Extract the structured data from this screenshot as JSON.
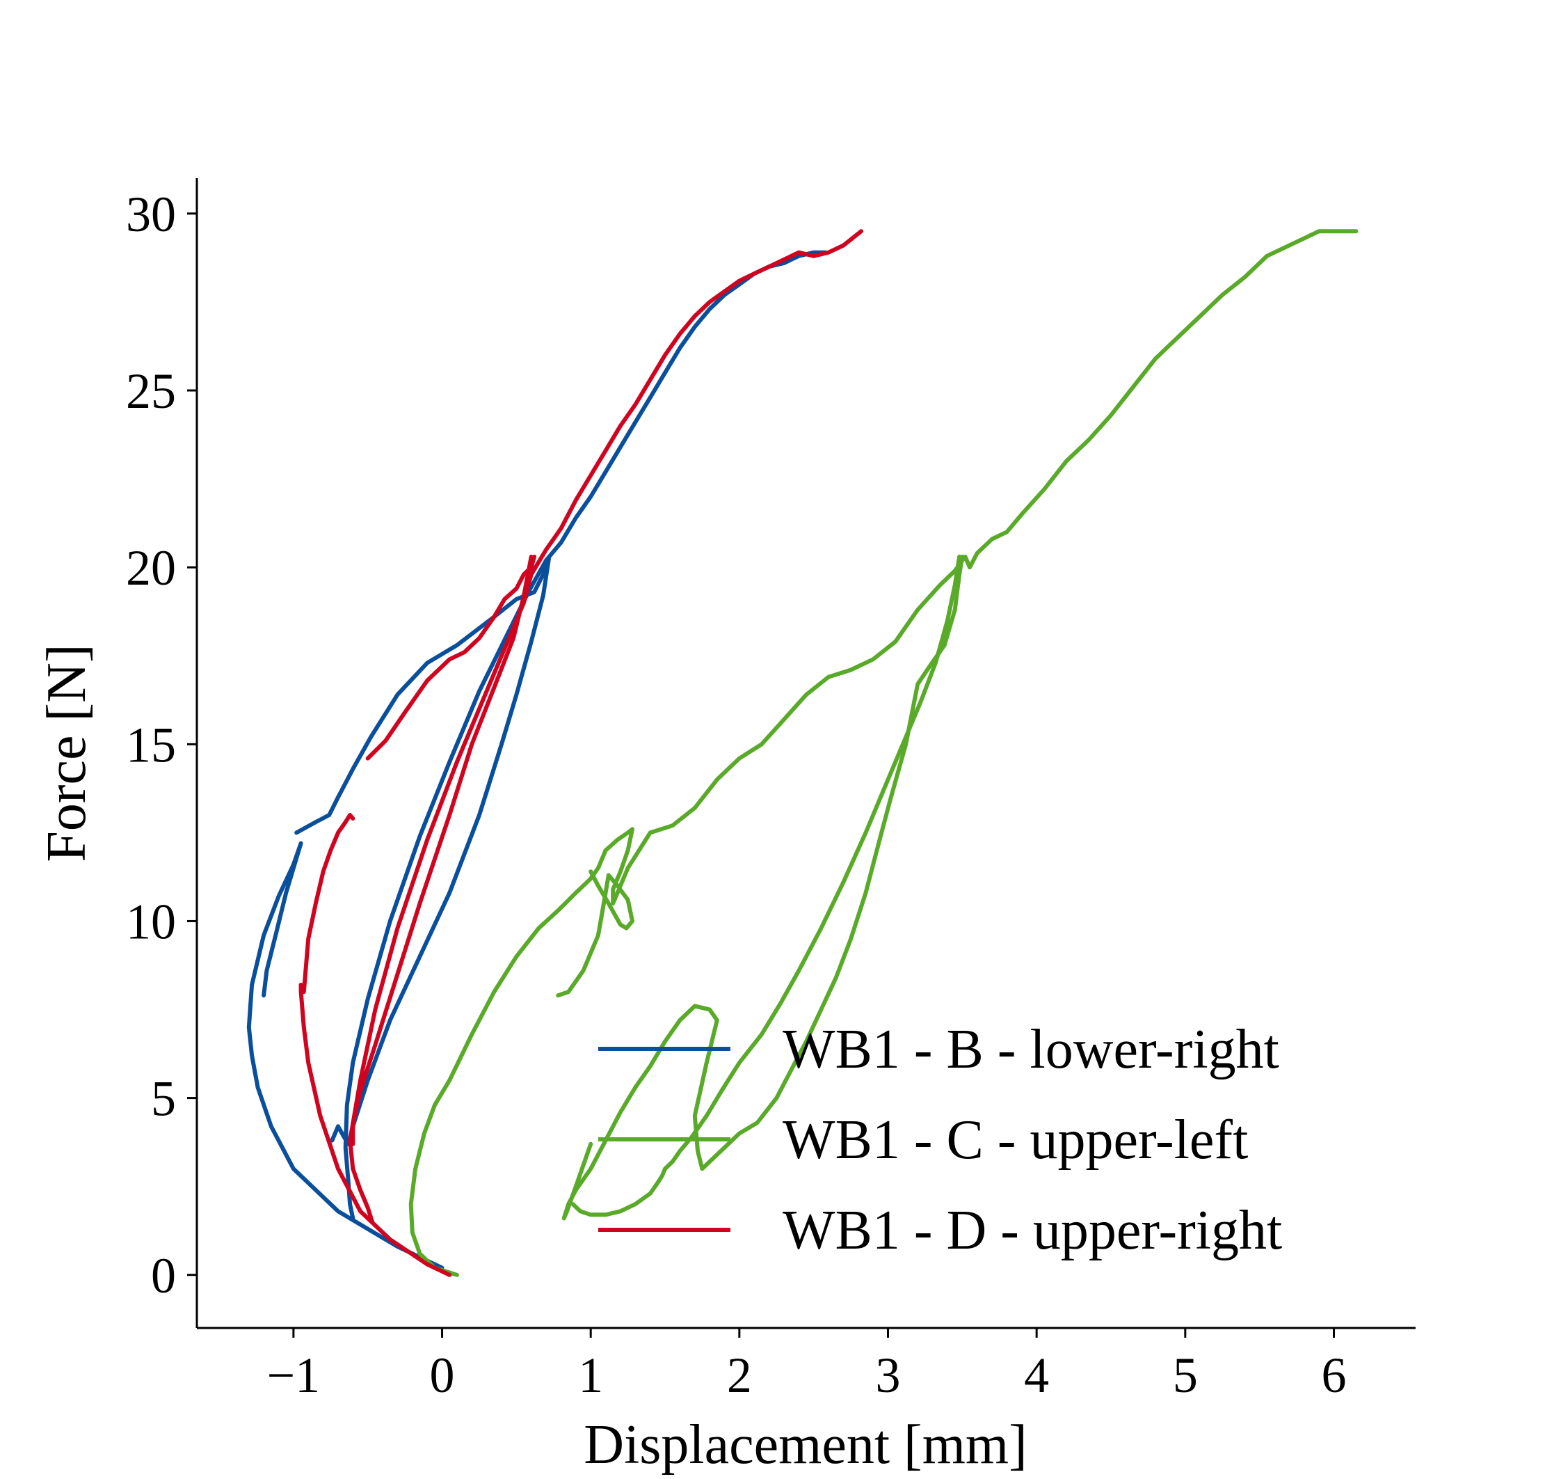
{
  "chart_data": {
    "type": "line",
    "title": "",
    "xlabel": "Displacement [mm]",
    "ylabel": "Force [N]",
    "xlim": [
      -1.65,
      6.55
    ],
    "ylim": [
      -1.5,
      31
    ],
    "xticks": [
      -1,
      0,
      1,
      2,
      3,
      4,
      5,
      6
    ],
    "xtick_labels": [
      "−1",
      "0",
      "1",
      "2",
      "3",
      "4",
      "5",
      "6"
    ],
    "yticks": [
      0,
      5,
      10,
      15,
      20,
      25,
      30
    ],
    "ytick_labels": [
      "0",
      "5",
      "10",
      "15",
      "20",
      "25",
      "30"
    ],
    "grid": false,
    "legend_position": "lower-right",
    "series": [
      {
        "name": "WB1 - B - lower-right",
        "color": "#0a4f9c",
        "x": [
          0.0,
          -0.3,
          -0.7,
          -1.0,
          -1.15,
          -1.24,
          -1.28,
          -1.3,
          -1.28,
          -1.2,
          -1.1,
          -1.0,
          -0.95,
          -1.05,
          -1.12,
          -1.18,
          -1.2,
          null,
          -0.98,
          -0.85,
          -0.76,
          -0.7,
          -0.6,
          -0.48,
          -0.3,
          -0.1,
          0.1,
          0.35,
          0.5,
          0.62,
          0.68,
          0.72,
          null,
          0.72,
          0.68,
          0.6,
          0.5,
          0.4,
          0.25,
          0.05,
          -0.15,
          -0.35,
          -0.5,
          -0.6,
          -0.63,
          -0.66,
          -0.7,
          -0.72,
          -0.74,
          null,
          -0.6,
          -0.62,
          -0.63,
          -0.65,
          -0.64,
          -0.6,
          -0.5,
          -0.35,
          -0.15,
          0.05,
          0.25,
          0.45,
          0.58,
          0.66,
          0.7,
          null,
          0.7,
          0.8,
          0.9,
          1.0,
          1.1,
          1.2,
          1.3,
          1.4,
          1.5,
          1.6,
          1.7,
          1.8,
          1.9,
          2.0,
          2.1,
          2.2,
          2.3,
          2.4,
          2.5,
          2.58
        ],
        "y": [
          0.2,
          0.8,
          1.8,
          3.0,
          4.2,
          5.3,
          6.2,
          7.0,
          8.2,
          9.6,
          10.7,
          11.6,
          12.2,
          10.8,
          9.6,
          8.6,
          7.9,
          null,
          12.5,
          12.8,
          13.0,
          13.5,
          14.3,
          15.2,
          16.4,
          17.3,
          17.8,
          18.6,
          19.1,
          19.3,
          19.8,
          20.3,
          null,
          20.3,
          19.2,
          17.9,
          16.4,
          15.0,
          13.0,
          10.8,
          9.0,
          7.2,
          5.5,
          4.2,
          3.7,
          3.9,
          4.2,
          4.0,
          3.8,
          null,
          1.6,
          2.0,
          2.6,
          3.6,
          4.8,
          6.0,
          7.8,
          10.0,
          12.4,
          14.5,
          16.5,
          18.2,
          19.3,
          19.9,
          20.2,
          null,
          20.2,
          20.7,
          21.4,
          22.0,
          22.7,
          23.4,
          24.1,
          24.8,
          25.5,
          26.2,
          26.8,
          27.3,
          27.7,
          28.0,
          28.3,
          28.5,
          28.6,
          28.8,
          28.9,
          28.9
        ]
      },
      {
        "name": "WB1 - C - upper-left",
        "color": "#5aaa29",
        "x": [
          0.1,
          -0.05,
          -0.15,
          -0.2,
          -0.21,
          -0.18,
          -0.12,
          -0.05,
          0.05,
          0.2,
          0.35,
          0.5,
          0.65,
          0.78,
          0.9,
          1.0,
          1.05,
          1.1,
          1.18,
          1.25,
          1.28,
          1.25,
          1.2,
          1.15,
          1.15,
          1.25,
          1.4,
          1.55,
          1.7,
          1.85,
          2.0,
          2.15,
          2.3,
          2.45,
          2.6,
          2.75,
          2.9,
          3.05,
          3.2,
          3.35,
          3.45,
          3.5,
          3.52,
          3.55,
          3.6,
          3.7,
          3.8,
          3.9,
          4.05,
          4.2,
          4.35,
          4.5,
          4.65,
          4.8,
          4.95,
          5.1,
          5.25,
          5.4,
          5.55,
          5.7,
          5.8,
          5.9,
          6.15,
          null,
          3.5,
          3.48,
          3.45,
          3.38,
          3.28,
          3.2,
          3.12,
          3.02,
          2.95,
          2.85,
          2.75,
          2.65,
          2.55,
          2.45,
          2.35,
          2.25,
          2.12,
          2.0,
          1.9,
          1.8,
          1.75,
          1.72,
          1.7,
          1.78,
          1.85,
          1.8,
          1.7,
          1.6,
          1.5,
          1.4,
          1.3,
          1.2,
          1.1,
          1.0,
          0.9,
          0.85,
          0.82,
          0.84,
          0.9,
          1.0,
          null,
          3.48,
          3.45,
          3.4,
          3.32,
          3.22,
          3.1,
          2.98,
          2.85,
          2.7,
          2.55,
          2.4,
          2.28,
          2.15,
          2.0,
          1.88,
          1.78,
          1.68,
          1.6,
          1.55,
          1.5,
          1.48,
          1.45,
          1.4,
          1.3,
          1.2,
          1.1,
          1.0,
          0.93,
          0.88,
          null,
          0.78,
          0.85,
          0.95,
          1.05,
          1.1,
          1.12,
          1.18,
          1.25,
          1.28,
          1.24,
          1.2,
          1.12,
          1.05,
          1.0
        ],
        "y": [
          0.0,
          0.2,
          0.6,
          1.2,
          2.0,
          3.0,
          4.0,
          4.8,
          5.5,
          6.8,
          8.0,
          9.0,
          9.8,
          10.3,
          10.8,
          11.2,
          11.5,
          12.0,
          12.3,
          12.5,
          12.6,
          12.0,
          11.4,
          10.9,
          10.5,
          11.5,
          12.5,
          12.7,
          13.2,
          14.0,
          14.6,
          15.0,
          15.7,
          16.4,
          16.9,
          17.1,
          17.4,
          17.9,
          18.8,
          19.5,
          19.9,
          20.2,
          20.3,
          20.0,
          20.4,
          20.8,
          21.0,
          21.5,
          22.2,
          23.0,
          23.6,
          24.3,
          25.1,
          25.9,
          26.5,
          27.1,
          27.7,
          28.2,
          28.8,
          29.1,
          29.3,
          29.5,
          29.5,
          null,
          20.3,
          19.8,
          18.8,
          17.8,
          17.2,
          16.7,
          15.0,
          13.5,
          12.4,
          10.8,
          9.5,
          8.4,
          7.5,
          6.6,
          5.8,
          5.0,
          4.3,
          4.0,
          3.6,
          3.2,
          3.0,
          3.5,
          4.5,
          6.0,
          7.2,
          7.5,
          7.6,
          7.2,
          6.6,
          5.9,
          5.3,
          4.6,
          3.8,
          3.0,
          2.4,
          2.0,
          1.6,
          1.8,
          2.5,
          3.7,
          null,
          20.3,
          19.5,
          18.5,
          17.3,
          16.2,
          15.0,
          13.8,
          12.5,
          11.1,
          9.8,
          8.6,
          7.7,
          6.8,
          6.0,
          5.2,
          4.5,
          3.9,
          3.5,
          3.2,
          3.0,
          2.8,
          2.6,
          2.3,
          2.0,
          1.8,
          1.7,
          1.7,
          1.8,
          2.0,
          null,
          7.9,
          8.0,
          8.6,
          9.6,
          10.8,
          11.3,
          11.0,
          10.6,
          10.0,
          9.8,
          9.9,
          10.5,
          11.0,
          11.4
        ]
      },
      {
        "name": "WB1 - D - upper-right",
        "color": "#d0041f",
        "x": [
          0.05,
          -0.1,
          -0.35,
          -0.55,
          -0.7,
          -0.82,
          -0.9,
          -0.93,
          -0.95,
          -0.95,
          null,
          -0.93,
          -0.9,
          -0.85,
          -0.8,
          -0.75,
          -0.7,
          -0.65,
          -0.62,
          -0.6,
          null,
          -0.5,
          -0.38,
          -0.25,
          -0.1,
          0.05,
          0.15,
          0.25,
          0.35,
          0.42,
          0.5,
          0.55,
          0.6,
          0.62,
          null,
          0.6,
          0.55,
          0.48,
          0.35,
          0.2,
          0.05,
          -0.15,
          -0.3,
          -0.45,
          -0.55,
          -0.6,
          -0.6,
          null,
          -0.47,
          -0.5,
          -0.55,
          -0.6,
          -0.62,
          -0.55,
          -0.45,
          -0.3,
          -0.1,
          0.1,
          0.3,
          0.45,
          0.55,
          0.6,
          null,
          0.6,
          0.7,
          0.8,
          0.9,
          1.0,
          1.1,
          1.2,
          1.3,
          1.4,
          1.5,
          1.6,
          1.7,
          1.8,
          1.9,
          2.0,
          2.1,
          2.2,
          2.3,
          2.4,
          2.5,
          2.6,
          2.7,
          2.82
        ],
        "y": [
          0.0,
          0.3,
          1.0,
          1.8,
          3.0,
          4.5,
          6.0,
          7.0,
          8.0,
          8.2,
          null,
          8.0,
          9.5,
          10.5,
          11.4,
          12.0,
          12.5,
          12.8,
          13.0,
          12.9,
          null,
          14.6,
          15.1,
          15.9,
          16.8,
          17.4,
          17.6,
          18.0,
          18.6,
          19.1,
          19.4,
          19.8,
          20.0,
          20.3,
          null,
          20.3,
          19.2,
          18.0,
          16.6,
          15.0,
          13.0,
          10.5,
          8.5,
          6.5,
          5.2,
          4.3,
          3.7,
          null,
          1.5,
          1.9,
          2.4,
          3.0,
          3.8,
          5.5,
          7.5,
          9.8,
          12.3,
          14.5,
          16.5,
          18.0,
          19.0,
          19.8,
          null,
          19.8,
          20.5,
          21.1,
          21.9,
          22.6,
          23.3,
          24.0,
          24.6,
          25.3,
          26.0,
          26.6,
          27.1,
          27.5,
          27.8,
          28.1,
          28.3,
          28.5,
          28.7,
          28.9,
          28.8,
          28.9,
          29.1,
          29.5
        ]
      }
    ]
  }
}
